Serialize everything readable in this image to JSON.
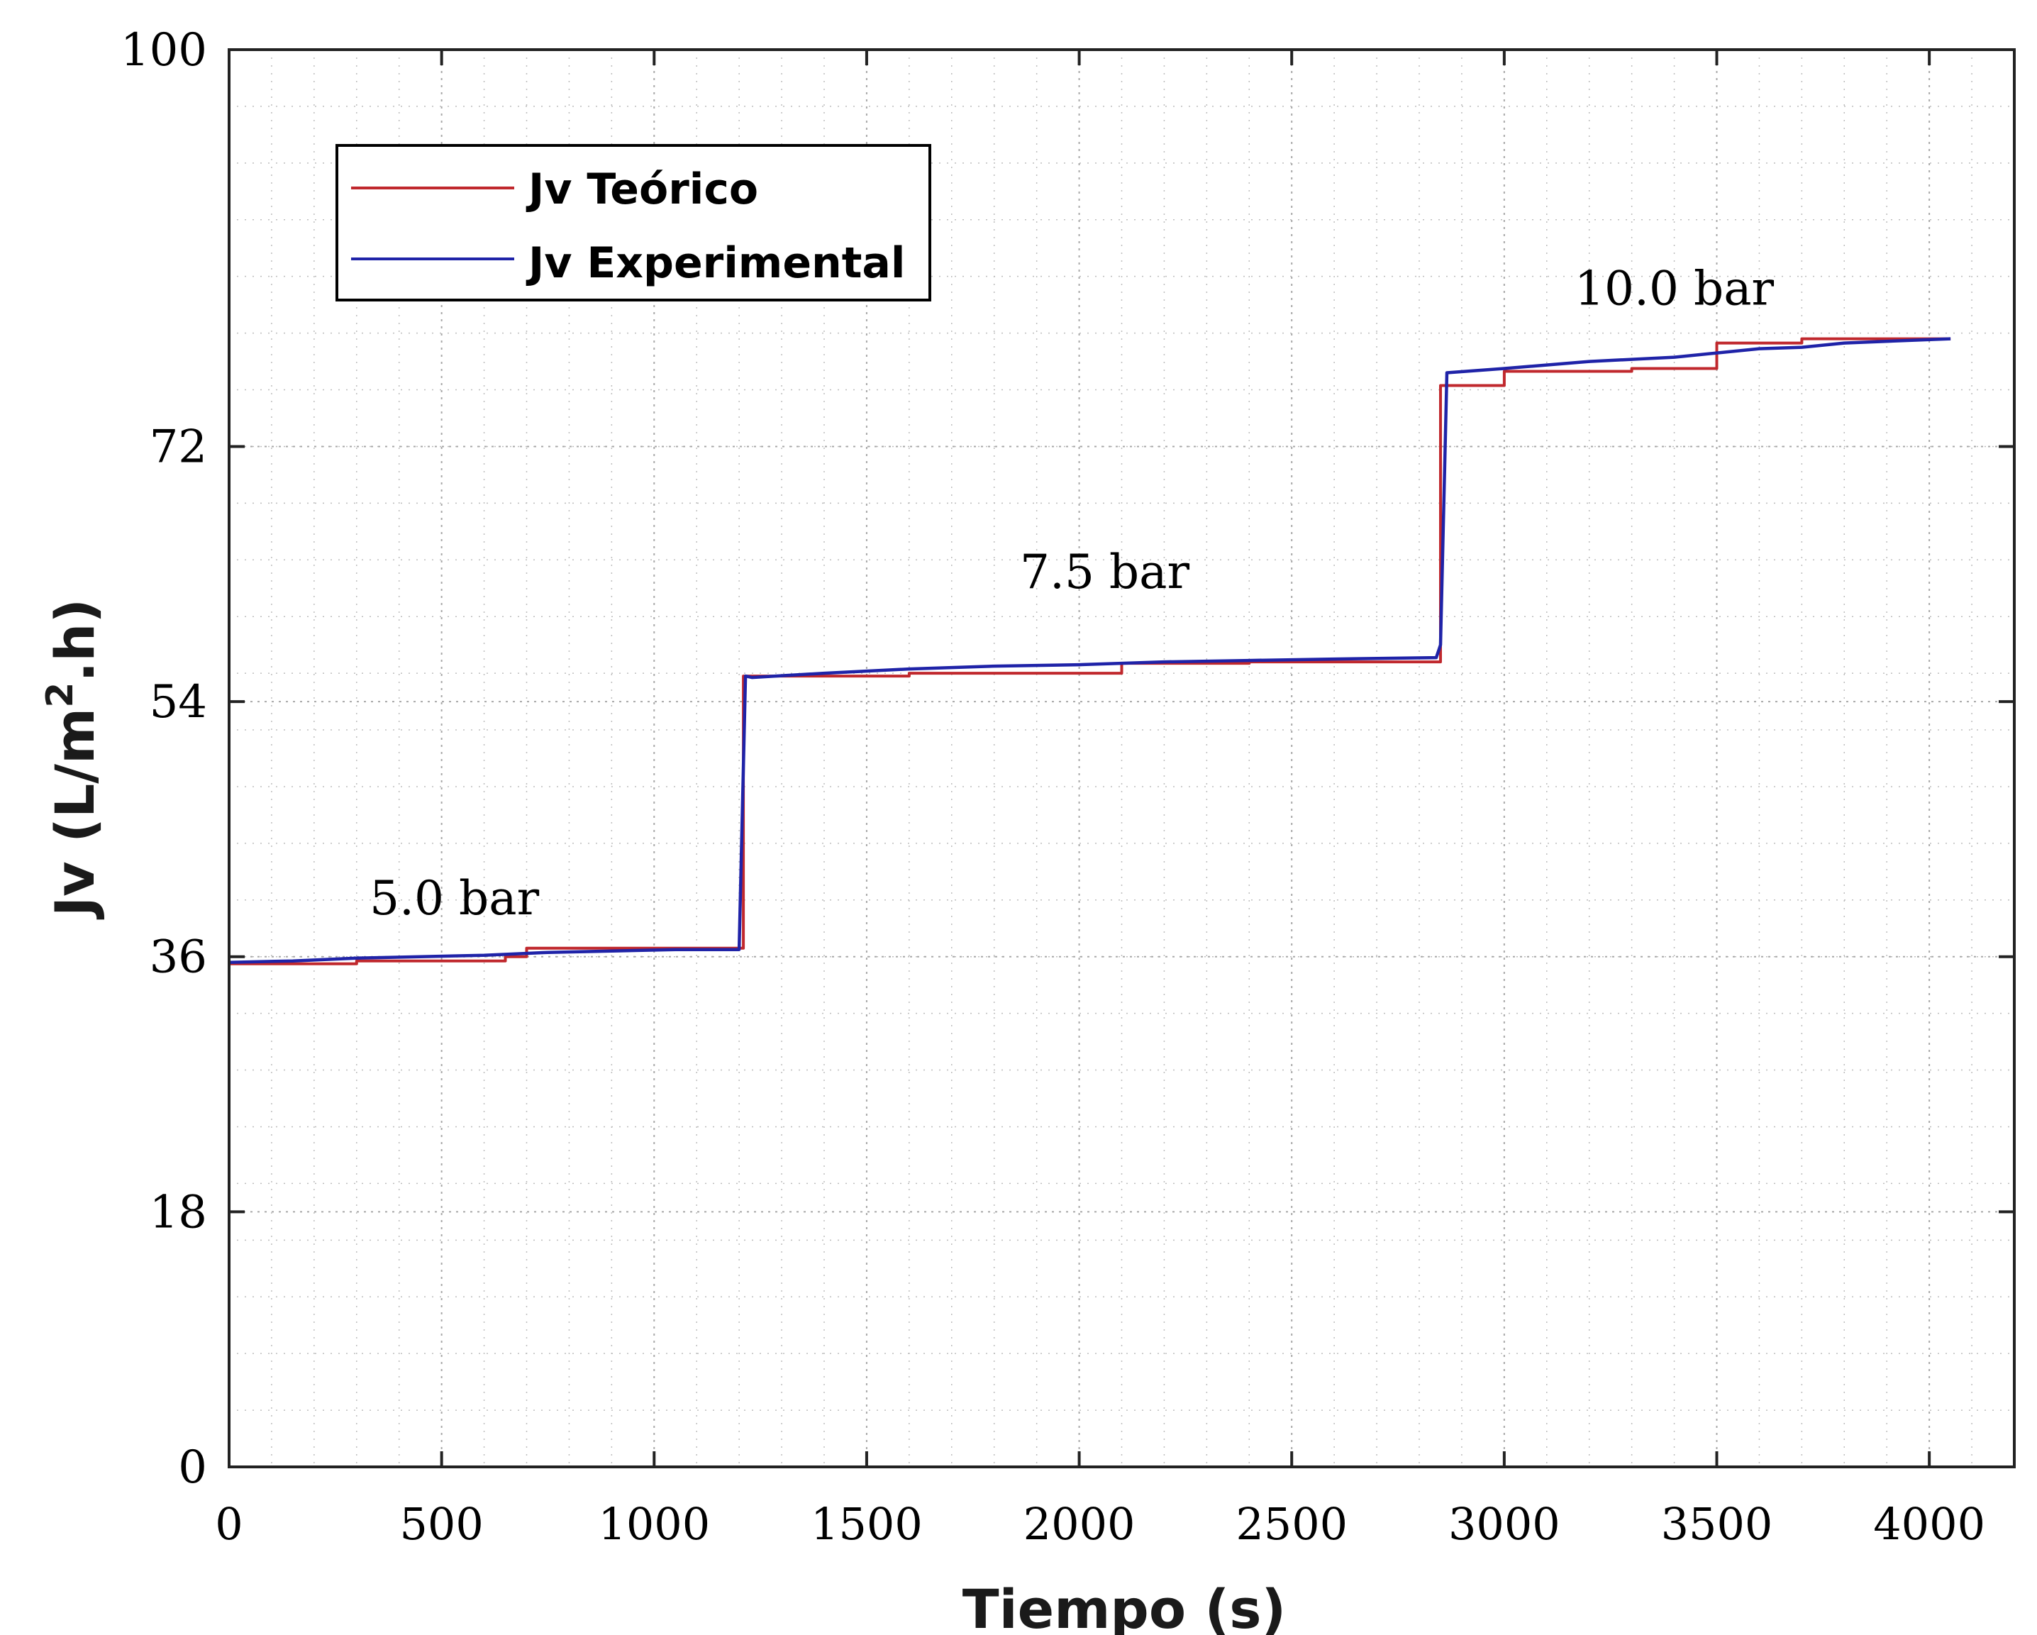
{
  "chart_data": {
    "type": "line",
    "title": "",
    "xlabel": "Tiempo (s)",
    "ylabel": "Jv (L/m",
    "ylabel_sup": "2",
    "ylabel_end": ".h)",
    "xlim": [
      0,
      4200
    ],
    "ylim": [
      0,
      100
    ],
    "x_ticks": [
      0,
      500,
      1000,
      1500,
      2000,
      2500,
      3000,
      3500,
      4000
    ],
    "x_tick_labels": [
      "0",
      "500",
      "1000",
      "1500",
      "2000",
      "2500",
      "3000",
      "3500",
      "4000"
    ],
    "y_ticks": [
      0,
      18,
      36,
      54,
      72,
      100
    ],
    "y_tick_labels": [
      "0",
      "18",
      "36",
      "54",
      "72",
      "100"
    ],
    "grid": true,
    "legend_position": "top-left",
    "annotations": [
      {
        "text": "5.0 bar",
        "x": 530,
        "y": 39
      },
      {
        "text": "7.5 bar",
        "x": 2060,
        "y": 62
      },
      {
        "text": "10.0 bar",
        "x": 3400,
        "y": 82
      }
    ],
    "series": [
      {
        "name": "Jv Teórico",
        "color": "#c0282d",
        "x": [
          0,
          300,
          300,
          650,
          650,
          700,
          700,
          1210,
          1210,
          1600,
          1600,
          2100,
          2100,
          2400,
          2400,
          2850,
          2850,
          3000,
          3000,
          3300,
          3300,
          3500,
          3500,
          3700,
          3700,
          4050
        ],
        "y": [
          35.5,
          35.5,
          35.7,
          35.7,
          36.0,
          36.0,
          36.6,
          36.6,
          55.8,
          55.8,
          56.0,
          56.0,
          56.7,
          56.7,
          56.8,
          56.8,
          76.3,
          76.3,
          77.3,
          77.3,
          77.5,
          77.5,
          79.3,
          79.3,
          79.6,
          79.6
        ]
      },
      {
        "name": "Jv Experimental",
        "color": "#1f23a8",
        "x": [
          0,
          150,
          300,
          450,
          600,
          750,
          900,
          1050,
          1200,
          1215,
          1230,
          1400,
          1600,
          1800,
          2000,
          2200,
          2400,
          2600,
          2840,
          2850,
          2865,
          3000,
          3200,
          3400,
          3500,
          3600,
          3700,
          3800,
          4050
        ],
        "y": [
          35.6,
          35.7,
          35.9,
          36.0,
          36.1,
          36.3,
          36.4,
          36.5,
          36.5,
          55.8,
          55.7,
          56.0,
          56.3,
          56.5,
          56.6,
          56.8,
          56.9,
          57.0,
          57.1,
          58,
          77.2,
          77.5,
          78.0,
          78.3,
          78.6,
          78.9,
          79.0,
          79.3,
          79.6
        ]
      }
    ]
  }
}
